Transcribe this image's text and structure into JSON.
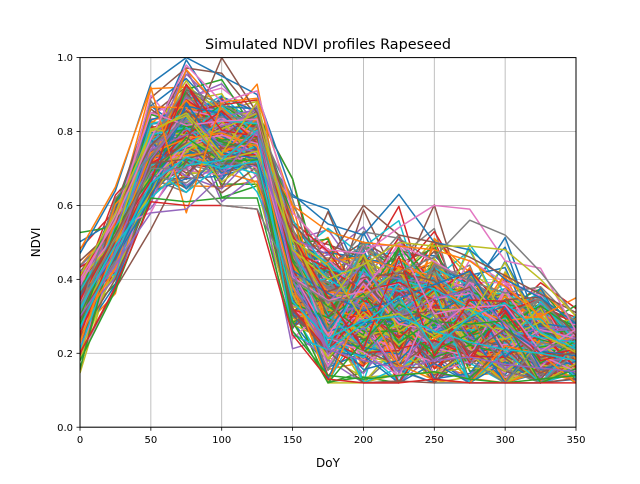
{
  "chart_data": {
    "type": "line",
    "title": "Simulated NDVI profiles Rapeseed",
    "xlabel": "DoY",
    "ylabel": "NDVI",
    "xlim": [
      0,
      350
    ],
    "ylim": [
      0,
      1.0
    ],
    "grid": true,
    "x_ticks": [
      0,
      50,
      100,
      150,
      200,
      250,
      300,
      350
    ],
    "x_tick_labels": [
      "0",
      "50",
      "100",
      "150",
      "200",
      "250",
      "300",
      "350"
    ],
    "y_ticks": [
      0.0,
      0.2,
      0.4,
      0.6,
      0.8,
      1.0
    ],
    "y_tick_labels": [
      "0.0",
      "0.2",
      "0.4",
      "0.6",
      "0.8",
      "1.0"
    ],
    "x": [
      0,
      25,
      50,
      75,
      100,
      125,
      150,
      175,
      200,
      225,
      250,
      275,
      300,
      325,
      350
    ],
    "series_count": 300,
    "colors": [
      "#1f77b4",
      "#ff7f0e",
      "#2ca02c",
      "#d62728",
      "#9467bd",
      "#8c564b",
      "#e377c2",
      "#7f7f7f",
      "#bcbd22",
      "#17becf"
    ],
    "series": [
      {
        "values": [
          0.47,
          0.64,
          0.93,
          1.0,
          0.95,
          0.9,
          0.63,
          0.55,
          0.52,
          0.63,
          0.5,
          0.48,
          0.4,
          0.35,
          0.28
        ]
      },
      {
        "values": [
          0.48,
          0.65,
          0.92,
          0.58,
          0.88,
          0.89,
          0.6,
          0.53,
          0.5,
          0.49,
          0.48,
          0.45,
          0.38,
          0.3,
          0.35
        ]
      },
      {
        "values": [
          0.18,
          0.37,
          0.62,
          0.61,
          0.62,
          0.62,
          0.26,
          0.14,
          0.13,
          0.14,
          0.15,
          0.13,
          0.12,
          0.13,
          0.14
        ]
      },
      {
        "values": [
          0.2,
          0.38,
          0.61,
          0.6,
          0.6,
          0.59,
          0.25,
          0.13,
          0.12,
          0.12,
          0.13,
          0.12,
          0.12,
          0.12,
          0.12
        ]
      },
      {
        "values": [
          0.3,
          0.44,
          0.58,
          0.59,
          0.68,
          0.8,
          0.42,
          0.21,
          0.18,
          0.16,
          0.18,
          0.19,
          0.17,
          0.16,
          0.15
        ]
      },
      {
        "values": [
          0.36,
          0.52,
          0.7,
          0.77,
          1.0,
          0.85,
          0.55,
          0.45,
          0.6,
          0.52,
          0.5,
          0.46,
          0.41,
          0.36,
          0.31
        ]
      },
      {
        "values": [
          0.4,
          0.56,
          0.78,
          0.98,
          0.88,
          0.91,
          0.58,
          0.48,
          0.47,
          0.54,
          0.6,
          0.59,
          0.45,
          0.43,
          0.26
        ]
      },
      {
        "values": [
          0.33,
          0.51,
          0.7,
          0.7,
          0.6,
          0.59,
          0.4,
          0.34,
          0.35,
          0.42,
          0.46,
          0.56,
          0.52,
          0.42,
          0.3
        ]
      },
      {
        "values": [
          0.41,
          0.58,
          0.8,
          0.85,
          0.74,
          0.88,
          0.48,
          0.4,
          0.44,
          0.5,
          0.49,
          0.49,
          0.48,
          0.4,
          0.3
        ]
      },
      {
        "values": [
          0.27,
          0.47,
          0.66,
          0.73,
          0.7,
          0.72,
          0.34,
          0.24,
          0.29,
          0.3,
          0.26,
          0.23,
          0.21,
          0.2,
          0.18
        ]
      }
    ]
  }
}
